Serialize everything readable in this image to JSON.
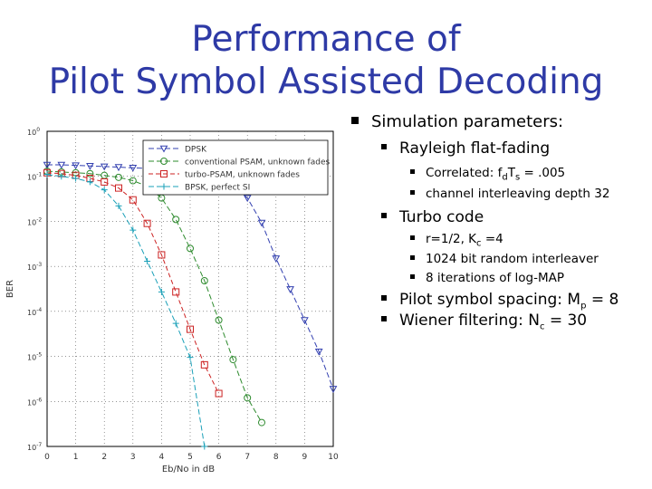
{
  "slide": {
    "title_line1": "Performance of",
    "title_line2": "Pilot Symbol Assisted Decoding",
    "bullets": {
      "sim_params": "Simulation parameters:",
      "rayleigh": "Rayleigh flat-fading",
      "correlated_prefix": "Correlated: f",
      "correlated_sub1": "d",
      "correlated_mid": "T",
      "correlated_sub2": "s",
      "correlated_suffix": " = .005",
      "interleaving": "channel interleaving depth 32",
      "turbo": "Turbo code",
      "rate_prefix": "r=1/2, K",
      "rate_sub": "c",
      "rate_suffix": " =4",
      "interleaver": "1024 bit random interleaver",
      "iterations": "8 iterations of log-MAP",
      "pilot_prefix": "Pilot symbol spacing: M",
      "pilot_sub": "p",
      "pilot_suffix": " = 8",
      "wiener_prefix": "Wiener filtering: N",
      "wiener_sub": "c",
      "wiener_suffix": " = 30"
    }
  },
  "chart_data": {
    "type": "line",
    "xlabel": "Eb/No in dB",
    "ylabel": "BER",
    "xlim": [
      0,
      10
    ],
    "ylim_exp": [
      -7,
      0
    ],
    "yscale": "log",
    "grid": true,
    "legend_position": "top-right",
    "x_ticks": [
      "0",
      "1",
      "2",
      "3",
      "4",
      "5",
      "6",
      "7",
      "8",
      "9",
      "10"
    ],
    "y_ticks": [
      "10^0",
      "10^-1",
      "10^-2",
      "10^-3",
      "10^-4",
      "10^-5",
      "10^-6",
      "10^-7"
    ],
    "series": [
      {
        "name": "DPSK",
        "color": "#3340b0",
        "marker": "triangle-down",
        "dash": "6,3",
        "x": [
          0,
          0.5,
          1,
          1.5,
          2,
          2.5,
          3,
          3.5,
          4,
          4.5,
          5,
          5.5,
          6,
          6.5,
          7,
          7.5,
          8,
          8.5,
          9,
          9.5,
          10
        ],
        "y": [
          0.18,
          0.18,
          0.175,
          0.17,
          0.165,
          0.16,
          0.155,
          0.15,
          0.14,
          0.13,
          0.12,
          0.11,
          0.09,
          0.06,
          0.033,
          0.0093,
          0.0015,
          0.00031,
          6.4e-05,
          1.28e-05,
          1.9e-06
        ]
      },
      {
        "name": "conventional PSAM, unknown fades",
        "color": "#2e8b2e",
        "marker": "circle",
        "dash": "6,3",
        "x": [
          0,
          0.5,
          1,
          1.5,
          2,
          2.5,
          3,
          3.5,
          4,
          4.5,
          5,
          5.5,
          6,
          6.5,
          7,
          7.5
        ],
        "y": [
          0.13,
          0.125,
          0.12,
          0.115,
          0.105,
          0.095,
          0.08,
          0.06,
          0.033,
          0.011,
          0.0025,
          0.00048,
          6.4e-05,
          8.5e-06,
          1.2e-06,
          3.4e-07
        ]
      },
      {
        "name": "turbo-PSAM, unknown fades",
        "color": "#cc2222",
        "marker": "square",
        "dash": "5,3",
        "x": [
          0,
          0.5,
          1,
          1.5,
          2,
          2.5,
          3,
          3.5,
          4,
          4.5,
          5,
          5.5,
          6
        ],
        "y": [
          0.12,
          0.115,
          0.105,
          0.09,
          0.075,
          0.055,
          0.03,
          0.009,
          0.0018,
          0.00027,
          4e-05,
          6.5e-06,
          1.5e-06
        ]
      },
      {
        "name": "BPSK, perfect SI",
        "color": "#1aa0b8",
        "marker": "plus",
        "dash": "6,3",
        "x": [
          0,
          0.5,
          1,
          1.5,
          2,
          2.5,
          3,
          3.5,
          4,
          4.5,
          5,
          5.5
        ],
        "y": [
          0.11,
          0.1,
          0.09,
          0.075,
          0.05,
          0.022,
          0.0064,
          0.0013,
          0.00027,
          5.4e-05,
          9.5e-06,
          1e-07
        ]
      }
    ]
  }
}
